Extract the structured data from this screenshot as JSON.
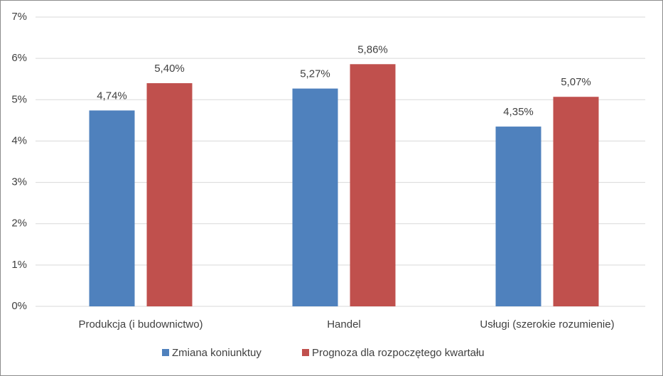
{
  "chart_data": {
    "type": "bar",
    "categories": [
      "Produkcja (i budownictwo)",
      "Handel",
      "Usługi (szerokie rozumienie)"
    ],
    "series": [
      {
        "name": "Zmiana koniunktuy",
        "color": "#4f81bd",
        "values": [
          4.74,
          5.27,
          4.35
        ],
        "value_labels": [
          "4,74%",
          "5,27%",
          "4,35%"
        ]
      },
      {
        "name": "Prognoza dla rozpoczętego kwartału",
        "color": "#c0504d",
        "values": [
          5.4,
          5.86,
          5.07
        ],
        "value_labels": [
          "5,40%",
          "5,86%",
          "5,07%"
        ]
      }
    ],
    "ylim": [
      0,
      7
    ],
    "yticks": [
      {
        "value": 0,
        "label": "0%"
      },
      {
        "value": 1,
        "label": "1%"
      },
      {
        "value": 2,
        "label": "2%"
      },
      {
        "value": 3,
        "label": "3%"
      },
      {
        "value": 4,
        "label": "4%"
      },
      {
        "value": 5,
        "label": "5%"
      },
      {
        "value": 6,
        "label": "6%"
      },
      {
        "value": 7,
        "label": "7%"
      }
    ],
    "grid": true,
    "legend": "bottom"
  }
}
